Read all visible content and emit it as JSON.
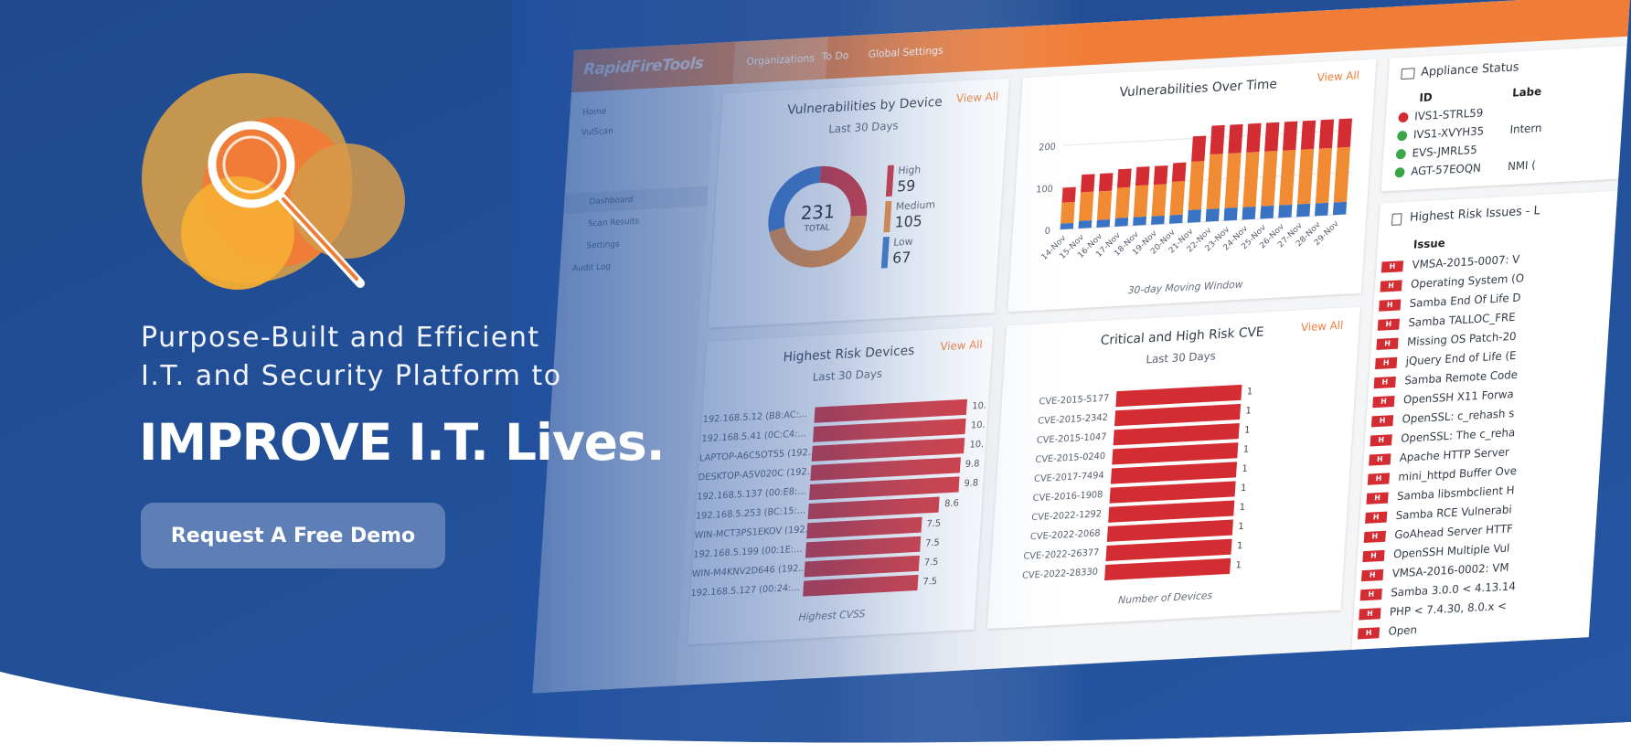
{
  "colors": {
    "background_blue": "#1f4a8f",
    "accent_orange": "#f07d37",
    "critical_red": "#d42c33",
    "button_blue": "#5d7fb6"
  },
  "hero": {
    "line1": "Purpose-Built and Efficient",
    "line2": "I.T. and Security Platform to",
    "headline": "IMPROVE I.T. Lives.",
    "cta_label": "Request A Free Demo",
    "logo_icon": "magnifier-icon"
  },
  "dashboard": {
    "brand": "RapidFireTools",
    "nav_tabs": [
      "Organizations",
      "To Do",
      "Global Settings"
    ],
    "sidebar": {
      "items": [
        "Home",
        "VulScan",
        "Dashboard",
        "Scan Results",
        "Settings",
        "Audit Log"
      ]
    },
    "vuln_by_device": {
      "title": "Vulnerabilities by Device",
      "subtitle": "Last 30 Days",
      "view_all": "View All",
      "total": "231",
      "total_label": "TOTAL",
      "legend": [
        {
          "label": "High",
          "value": "59"
        },
        {
          "label": "Medium",
          "value": "105"
        },
        {
          "label": "Low",
          "value": "67"
        }
      ]
    },
    "vuln_over_time": {
      "title": "Vulnerabilities Over Time",
      "view_all": "View All",
      "footer": "30-day Moving Window"
    },
    "highest_risk_devices": {
      "title": "Highest Risk Devices",
      "subtitle": "Last 30 Days",
      "view_all": "View All",
      "footer": "Highest CVSS"
    },
    "critical_cve": {
      "title": "Critical and High Risk CVE",
      "subtitle": "Last 30 Days",
      "view_all": "View All",
      "footer": "Number of Devices"
    },
    "appliance_status": {
      "title": "Appliance Status",
      "col_id": "ID",
      "col_label": "Labe",
      "rows": [
        {
          "id": "IVS1-STRL59",
          "label": "",
          "color": "#d42c33"
        },
        {
          "id": "IVS1-XVYH35",
          "label": "Intern",
          "color": "#3aa64a"
        },
        {
          "id": "EVS-JMRL55",
          "label": "",
          "color": "#3aa64a"
        },
        {
          "id": "AGT-57EOQN",
          "label": "NMI (",
          "color": "#3aa64a"
        }
      ]
    },
    "highest_risk_issues": {
      "title": "Highest Risk Issues - L",
      "col_issue": "Issue",
      "badge": "H",
      "rows": [
        "VMSA-2015-0007: V",
        "Operating System (O",
        "Samba End Of Life D",
        "Samba TALLOC_FRE",
        "Missing OS Patch-20",
        "jQuery End of Life (E",
        "Samba Remote Code",
        "OpenSSH X11 Forwa",
        "OpenSSL: c_rehash s",
        "OpenSSL: The c_reha",
        "Apache HTTP Server",
        "mini_httpd Buffer Ove",
        "Samba libsmbclient H",
        "Samba RCE Vulnerabi",
        "GoAhead Server HTTF",
        "OpenSSH Multiple Vul",
        "VMSA-2016-0002: VM",
        "Samba 3.0.0 < 4.13.14",
        "PHP < 7.4.30, 8.0.x <",
        "Open"
      ]
    }
  },
  "chart_data": [
    {
      "type": "pie",
      "title": "Vulnerabilities by Device",
      "subtitle": "Last 30 Days",
      "categories": [
        "High",
        "Medium",
        "Low"
      ],
      "values": [
        59,
        105,
        67
      ],
      "colors": [
        "#d42c33",
        "#f08a33",
        "#3a73c4"
      ],
      "total": 231
    },
    {
      "type": "bar",
      "title": "Vulnerabilities Over Time",
      "xlabel": "30-day Moving Window",
      "categories": [
        "14-Nov",
        "15-Nov",
        "16-Nov",
        "17-Nov",
        "18-Nov",
        "19-Nov",
        "20-Nov",
        "21-Nov",
        "22-Nov",
        "23-Nov",
        "24-Nov",
        "25-Nov",
        "26-Nov",
        "27-Nov",
        "28-Nov",
        "29-Nov"
      ],
      "series": [
        {
          "values": [
            14,
            18,
            18,
            20,
            20,
            20,
            20,
            30,
            30,
            30,
            30,
            30,
            30,
            30,
            30,
            30
          ],
          "color": "#3a73c4"
        },
        {
          "values": [
            50,
            68,
            68,
            72,
            75,
            75,
            80,
            115,
            130,
            130,
            130,
            130,
            130,
            130,
            130,
            130
          ],
          "color": "#f08a33"
        },
        {
          "values": [
            35,
            42,
            42,
            44,
            44,
            44,
            44,
            60,
            68,
            68,
            68,
            68,
            68,
            68,
            68,
            68
          ],
          "color": "#d42c33"
        }
      ],
      "stacked": true,
      "ytick_labels": [
        "0",
        "100",
        "200"
      ],
      "ylim": [
        0,
        240
      ]
    },
    {
      "type": "bar",
      "orientation": "horizontal",
      "title": "Highest Risk Devices",
      "subtitle": "Last 30 Days",
      "xlabel": "Highest CVSS",
      "categories": [
        "192.168.5.12 (B8:AC:...",
        "192.168.5.41 (0C:C4:...",
        "LAPTOP-A6C5OT55 (192...",
        "DESKTOP-A5V020C (192...",
        "192.168.5.137 (00:E8:...",
        "192.168.5.253 (BC:15:...",
        "WIN-MCT3PS1EKOV (192...",
        "192.168.5.199 (00:1E:...",
        "WIN-M4KNV2D646 (192...",
        "192.168.5.127 (00:24:..."
      ],
      "values": [
        10,
        10,
        10,
        9.8,
        9.8,
        8.6,
        7.5,
        7.5,
        7.5,
        7.5
      ],
      "value_labels": [
        "10.",
        "10.",
        "10.",
        "9.8",
        "9.8",
        "8.6",
        "7.5",
        "7.5",
        "7.5",
        "7.5"
      ],
      "xlim": [
        0,
        10
      ],
      "color": "#d42c33"
    },
    {
      "type": "bar",
      "orientation": "horizontal",
      "title": "Critical and High Risk CVE",
      "subtitle": "Last 30 Days",
      "xlabel": "Number of Devices",
      "categories": [
        "CVE-2015-5177",
        "CVE-2015-2342",
        "CVE-2015-1047",
        "CVE-2015-0240",
        "CVE-2017-7494",
        "CVE-2016-1908",
        "CVE-2022-1292",
        "CVE-2022-2068",
        "CVE-2022-26377",
        "CVE-2022-28330"
      ],
      "values": [
        1,
        1,
        1,
        1,
        1,
        1,
        1,
        1,
        1,
        1
      ],
      "xlim": [
        0,
        1
      ],
      "color": "#d42c33"
    }
  ]
}
